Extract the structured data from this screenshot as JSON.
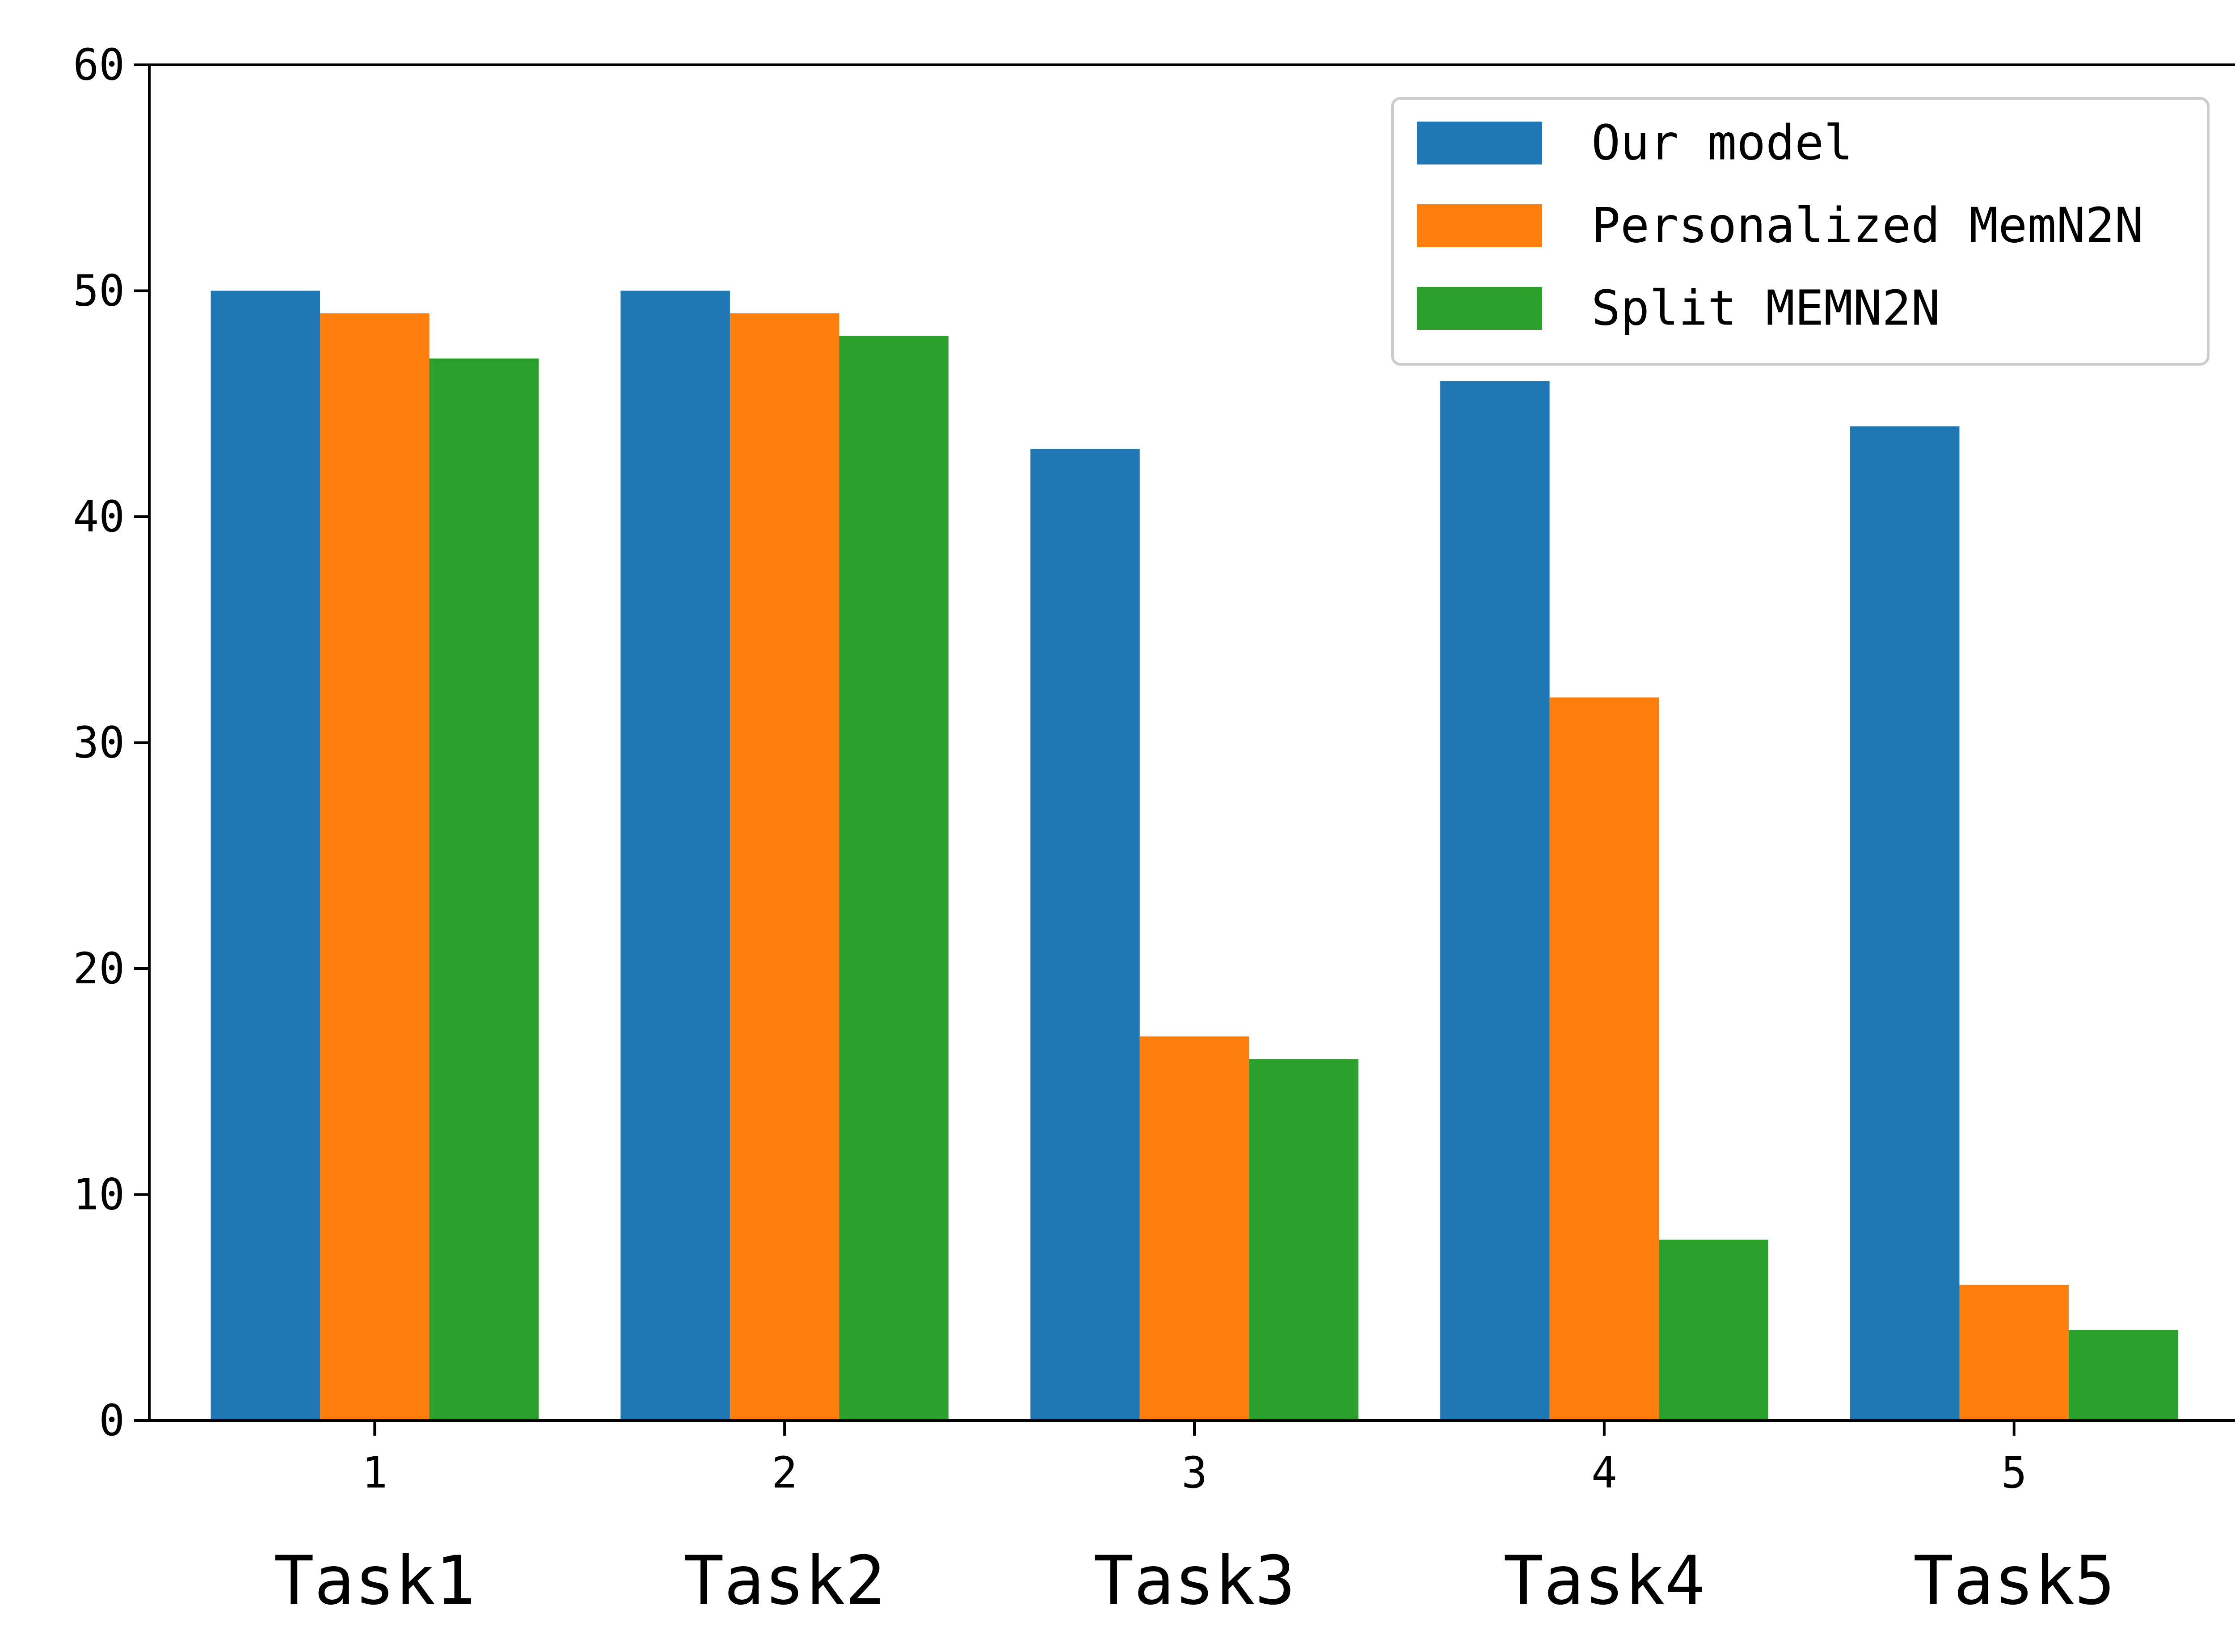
{
  "chart_data": {
    "type": "bar",
    "categories": [
      "1",
      "2",
      "3",
      "4",
      "5"
    ],
    "category_names": [
      "Task1",
      "Task2",
      "Task3",
      "Task4",
      "Task5"
    ],
    "series": [
      {
        "name": "Our model",
        "values": [
          50,
          50,
          43,
          46,
          44
        ],
        "color": "#1f77b4"
      },
      {
        "name": "Personalized MemN2N",
        "values": [
          49,
          49,
          17,
          32,
          6
        ],
        "color": "#ff7f0e"
      },
      {
        "name": "Split MEMN2N",
        "values": [
          47,
          48,
          16,
          8,
          4
        ],
        "color": "#2ca02c"
      }
    ],
    "ylim": [
      0,
      60
    ],
    "yticks": [
      "0",
      "10",
      "20",
      "30",
      "40",
      "50",
      "60"
    ],
    "grid": false,
    "legend_position": "top-right"
  }
}
